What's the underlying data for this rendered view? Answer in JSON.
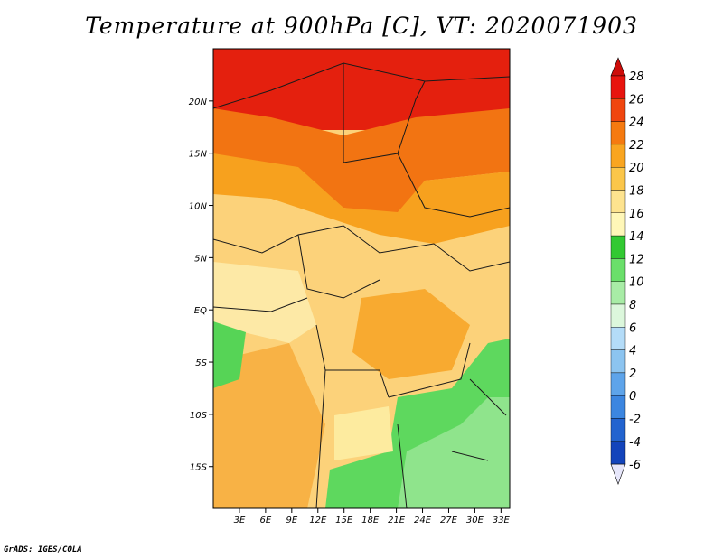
{
  "title": "Temperature at 900hPa [C], VT: 2020071903",
  "credit": "GrADS: IGES/COLA",
  "map": {
    "lon_range": [
      0,
      34
    ],
    "lat_range": [
      -19,
      25
    ],
    "lon_labels": [
      "3E",
      "6E",
      "9E",
      "12E",
      "15E",
      "18E",
      "21E",
      "24E",
      "27E",
      "30E",
      "33E"
    ],
    "lon_values": [
      3,
      6,
      9,
      12,
      15,
      18,
      21,
      24,
      27,
      30,
      33
    ],
    "lat_labels": [
      "20N",
      "15N",
      "10N",
      "5N",
      "EQ",
      "5S",
      "10S",
      "15S"
    ],
    "lat_values": [
      20,
      15,
      10,
      5,
      0,
      -5,
      -10,
      -15
    ]
  },
  "colorbar": {
    "labels": [
      "28",
      "26",
      "24",
      "22",
      "20",
      "18",
      "16",
      "14",
      "12",
      "10",
      "8",
      "6",
      "4",
      "2",
      "0",
      "-2",
      "-4",
      "-6"
    ],
    "colors": [
      "#e8140e",
      "#f0460f",
      "#f57a10",
      "#f9a520",
      "#fbc64a",
      "#fde38f",
      "#fff7b8",
      "#32c932",
      "#6adf6a",
      "#a8eca6",
      "#dcf7dc",
      "#b4dcf8",
      "#8cc4f0",
      "#5ea4ea",
      "#3c86e0",
      "#2263cf",
      "#1344bb",
      "#0a1e90"
    ],
    "top_cap_color": "#cd0d0a",
    "bottom_cap_color": "#e6e6fa"
  }
}
